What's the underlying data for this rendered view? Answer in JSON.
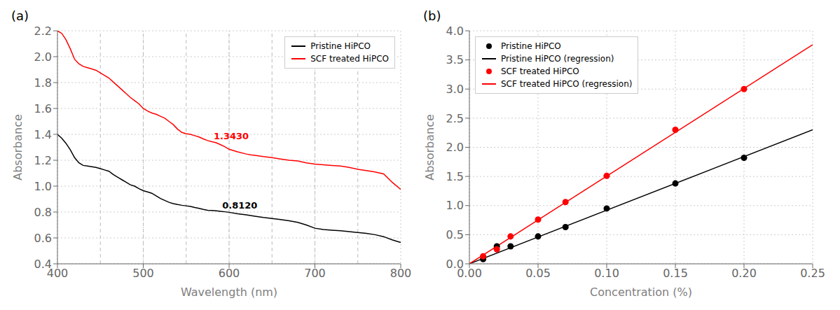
{
  "chart_data": [
    {
      "type": "line",
      "title": "(a)",
      "xlabel": "Wavelength (nm)",
      "ylabel": "Absorbance",
      "x": [
        400,
        405,
        410,
        415,
        420,
        425,
        430,
        435,
        440,
        445,
        450,
        455,
        460,
        465,
        470,
        475,
        480,
        485,
        490,
        495,
        500,
        505,
        510,
        515,
        520,
        525,
        530,
        535,
        540,
        545,
        550,
        555,
        560,
        565,
        570,
        575,
        580,
        585,
        590,
        595,
        600,
        610,
        620,
        625,
        630,
        640,
        650,
        660,
        670,
        680,
        690,
        700,
        710,
        720,
        730,
        740,
        750,
        760,
        770,
        780,
        790,
        800
      ],
      "series": [
        {
          "name": "Pristine HiPCO",
          "color": "black",
          "values": [
            1.4,
            1.37,
            1.33,
            1.28,
            1.22,
            1.18,
            1.16,
            1.155,
            1.15,
            1.145,
            1.135,
            1.125,
            1.115,
            1.09,
            1.07,
            1.05,
            1.03,
            1.01,
            1.0,
            0.98,
            0.965,
            0.955,
            0.945,
            0.925,
            0.905,
            0.89,
            0.875,
            0.865,
            0.858,
            0.852,
            0.848,
            0.843,
            0.835,
            0.828,
            0.82,
            0.814,
            0.812,
            0.81,
            0.806,
            0.802,
            0.798,
            0.787,
            0.778,
            0.773,
            0.768,
            0.758,
            0.75,
            0.742,
            0.732,
            0.72,
            0.7,
            0.675,
            0.665,
            0.66,
            0.655,
            0.648,
            0.642,
            0.635,
            0.625,
            0.61,
            0.585,
            0.565
          ]
        },
        {
          "name": "SCF treated HiPCO",
          "color": "red",
          "values": [
            2.2,
            2.18,
            2.13,
            2.06,
            1.98,
            1.945,
            1.925,
            1.915,
            1.905,
            1.895,
            1.875,
            1.855,
            1.835,
            1.805,
            1.775,
            1.745,
            1.715,
            1.685,
            1.66,
            1.635,
            1.6,
            1.58,
            1.565,
            1.555,
            1.54,
            1.525,
            1.5,
            1.475,
            1.44,
            1.415,
            1.405,
            1.4,
            1.39,
            1.38,
            1.365,
            1.352,
            1.343,
            1.335,
            1.32,
            1.305,
            1.285,
            1.265,
            1.248,
            1.242,
            1.238,
            1.228,
            1.22,
            1.21,
            1.2,
            1.195,
            1.18,
            1.17,
            1.165,
            1.16,
            1.155,
            1.145,
            1.13,
            1.12,
            1.11,
            1.095,
            1.03,
            0.975
          ]
        }
      ],
      "xlim": [
        400,
        800
      ],
      "ylim": [
        0.4,
        2.2
      ],
      "xticks": [
        400,
        500,
        600,
        700,
        800
      ],
      "yticks": [
        0.4,
        0.6,
        0.8,
        {
          "value": 1.0,
          "label": "1.0"
        },
        1.2,
        1.4,
        1.6,
        1.8,
        {
          "value": 2.0,
          "label": "2.0"
        },
        2.2
      ],
      "vlines": [
        450,
        500,
        550,
        600,
        650,
        700,
        750
      ],
      "annotations": [
        {
          "x": 592,
          "y": 0.818,
          "text": "0.8120",
          "color": "black"
        },
        {
          "x": 582,
          "y": 1.35,
          "text": "1.3430",
          "color": "red"
        }
      ],
      "grid": true,
      "legend": "upper right"
    },
    {
      "type": "scatter",
      "title": "(b)",
      "xlabel": "Concentration (%)",
      "ylabel": "Absorbance",
      "series": [
        {
          "name": "Pristine HiPCO",
          "color": "black",
          "type": "scatter",
          "marker": "circle",
          "x": [
            0.01,
            0.02,
            0.03,
            0.05,
            0.07,
            0.1,
            0.15,
            0.2
          ],
          "values": [
            0.08,
            0.3,
            0.3,
            0.47,
            0.63,
            0.95,
            1.38,
            1.82
          ]
        },
        {
          "name": "Pristine HiPCO (regression)",
          "color": "black",
          "type": "line",
          "x": [
            0.0,
            0.25
          ],
          "values": [
            0.0,
            2.3
          ]
        },
        {
          "name": "SCF treated HiPCO",
          "color": "red",
          "type": "scatter",
          "marker": "circle",
          "x": [
            0.01,
            0.02,
            0.03,
            0.05,
            0.07,
            0.1,
            0.15,
            0.2
          ],
          "values": [
            0.13,
            0.25,
            0.47,
            0.76,
            1.06,
            1.51,
            2.3,
            3.0
          ]
        },
        {
          "name": "SCF treated HiPCO (regression)",
          "color": "red",
          "type": "line",
          "x": [
            0.0,
            0.25
          ],
          "values": [
            0.0,
            3.7625
          ]
        }
      ],
      "xlim": [
        0.0,
        0.25
      ],
      "ylim": [
        0.0,
        4.0
      ],
      "xticks": [
        {
          "value": 0.0,
          "label": "0.00"
        },
        0.05,
        {
          "value": 0.1,
          "label": "0.10"
        },
        0.15,
        {
          "value": 0.2,
          "label": "0.20"
        },
        0.25
      ],
      "yticks": [
        {
          "value": 0.0,
          "label": "0.0"
        },
        0.5,
        {
          "value": 1.0,
          "label": "1.0"
        },
        1.5,
        {
          "value": 2.0,
          "label": "2.0"
        },
        2.5,
        {
          "value": 3.0,
          "label": "3.0"
        },
        3.5,
        {
          "value": 4.0,
          "label": "4.0"
        }
      ],
      "grid": true,
      "legend": "upper left"
    }
  ]
}
